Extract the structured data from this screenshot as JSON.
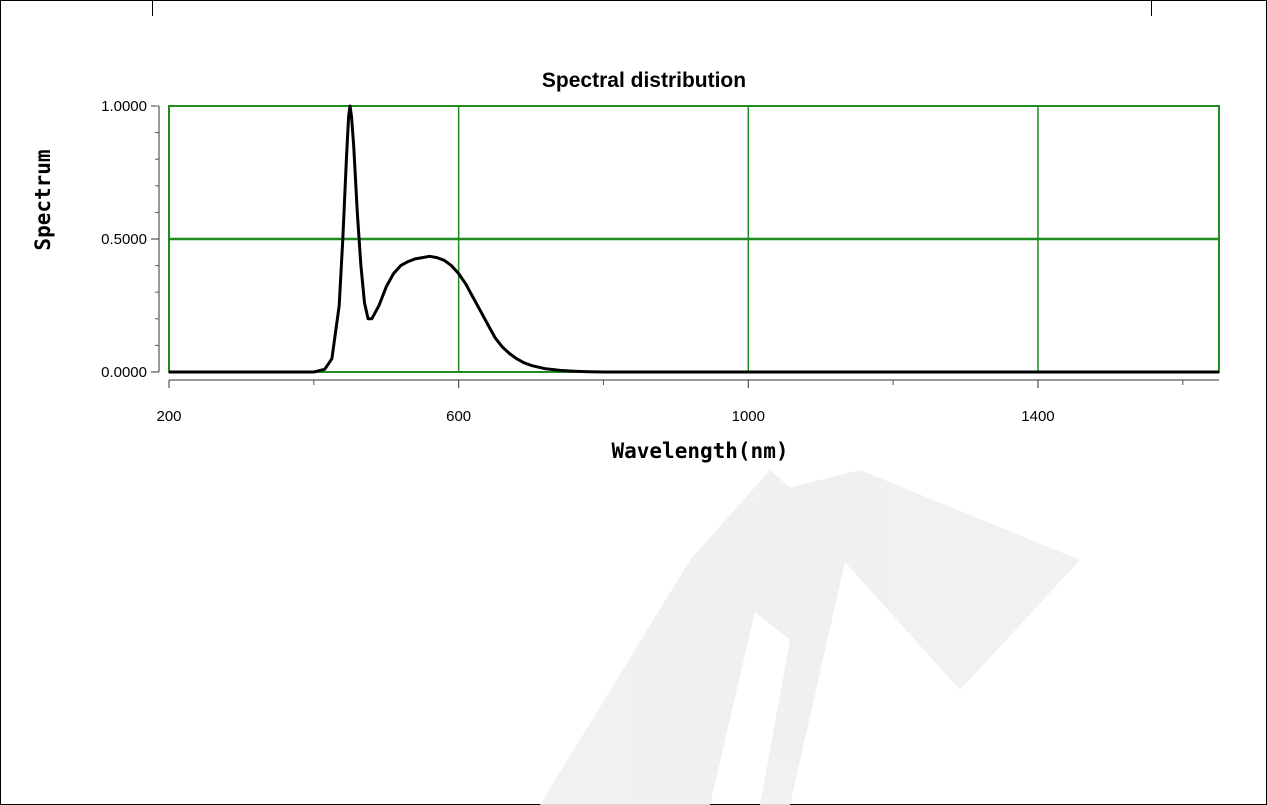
{
  "chart_data": {
    "type": "line",
    "title": "Spectral distribution",
    "xlabel": "Wavelength(nm)",
    "ylabel": "Spectrum",
    "xlim": [
      200,
      1650
    ],
    "ylim": [
      0,
      1
    ],
    "x_ticks": [
      "200",
      "600",
      "1000",
      "1400"
    ],
    "y_ticks": [
      "0.0000",
      "0.5000",
      "1.0000"
    ],
    "grid": true,
    "grid_color": "#1e8c1e",
    "line_color": "#000000",
    "series": [
      {
        "x": [
          200,
          400,
          415,
          425,
          435,
          440,
          445,
          448,
          450,
          452,
          455,
          460,
          465,
          470,
          475,
          480,
          490,
          500,
          510,
          520,
          530,
          540,
          550,
          560,
          570,
          580,
          590,
          600,
          610,
          620,
          630,
          640,
          650,
          660,
          670,
          680,
          690,
          700,
          720,
          740,
          760,
          780,
          800,
          1000,
          1200,
          1400,
          1650
        ],
        "y": [
          0.0,
          0.0,
          0.01,
          0.05,
          0.25,
          0.5,
          0.8,
          0.96,
          1.0,
          0.96,
          0.85,
          0.6,
          0.4,
          0.26,
          0.2,
          0.2,
          0.25,
          0.32,
          0.37,
          0.4,
          0.415,
          0.425,
          0.43,
          0.435,
          0.43,
          0.42,
          0.4,
          0.37,
          0.33,
          0.28,
          0.23,
          0.18,
          0.13,
          0.095,
          0.07,
          0.05,
          0.035,
          0.025,
          0.012,
          0.006,
          0.003,
          0.001,
          0.0,
          0.0,
          0.0,
          0.0,
          0.0
        ]
      }
    ]
  }
}
